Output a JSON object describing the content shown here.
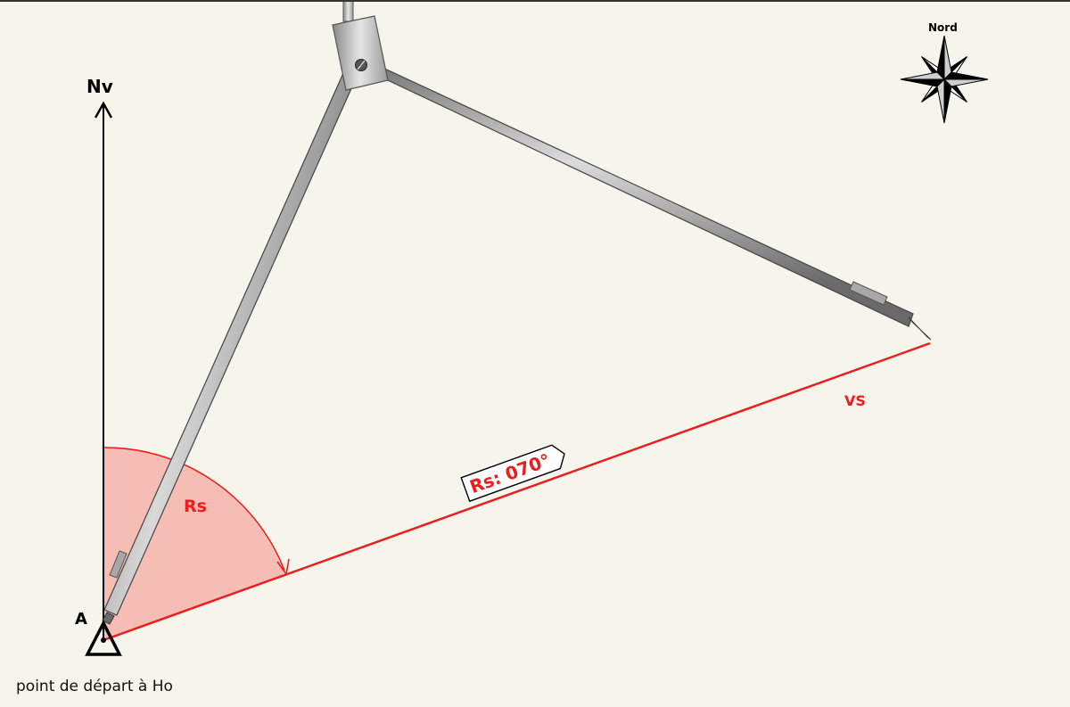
{
  "diagram": {
    "north_label": "Nv",
    "point_label": "A",
    "caption": "point de départ à Ho",
    "angle_label": "Rs",
    "route_label": "Rs: 070°",
    "vector_label": "VS",
    "compass_label": "Nord",
    "route_heading_deg": 70,
    "colors": {
      "background": "#f5f5eb",
      "route": "#ee1c1c",
      "sector_fill": "#f4a9a0",
      "ink": "#000000",
      "metal": "#9a9a9a"
    }
  }
}
